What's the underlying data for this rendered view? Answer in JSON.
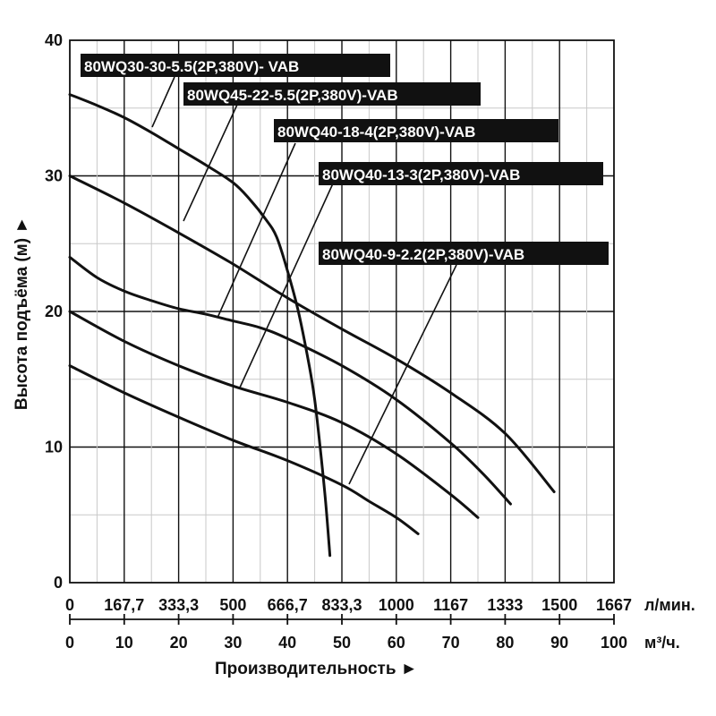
{
  "chart_data": {
    "type": "line",
    "xlabel": "Производительность ►",
    "ylabel": "Высота подъёма (м) ►",
    "x_unit": "м³/ч.",
    "x2_unit": "л/мин.",
    "xlim": [
      0,
      100
    ],
    "ylim": [
      0,
      40
    ],
    "x_ticks": [
      "0",
      "10",
      "20",
      "30",
      "40",
      "50",
      "60",
      "70",
      "80",
      "90",
      "100"
    ],
    "x2_ticks": [
      "0",
      "167,7",
      "333,3",
      "500",
      "666,7",
      "833,3",
      "1000",
      "1167",
      "1333",
      "1500",
      "1667"
    ],
    "y_ticks": [
      "0",
      "10",
      "20",
      "30",
      "40"
    ],
    "grid": true,
    "series": [
      {
        "name": "80WQ30-30-5.5(2P,380V)- VAB",
        "x": [
          0,
          5,
          10,
          15,
          20,
          25,
          30,
          33,
          36,
          38,
          40,
          42,
          44,
          45,
          46,
          47,
          47.8
        ],
        "y": [
          36,
          35.2,
          34.3,
          33.2,
          32,
          30.8,
          29.5,
          28.3,
          26.8,
          25.5,
          23,
          20,
          16,
          13.5,
          10,
          6,
          2
        ]
      },
      {
        "name": "80WQ45-22-5.5(2P,380V)-VAB",
        "x": [
          0,
          10,
          20,
          30,
          40,
          50,
          60,
          70,
          80,
          89
        ],
        "y": [
          30,
          28,
          25.8,
          23.5,
          21,
          18.7,
          16.5,
          14,
          11,
          6.7
        ]
      },
      {
        "name": "80WQ40-18-4(2P,380V)-VAB",
        "x": [
          0,
          5,
          10,
          15,
          20,
          25,
          30,
          35,
          40,
          50,
          60,
          70,
          76,
          81
        ],
        "y": [
          24,
          22.5,
          21.5,
          20.8,
          20.2,
          19.8,
          19.3,
          18.8,
          18,
          16,
          13.5,
          10.3,
          8,
          5.8
        ]
      },
      {
        "name": "80WQ40-13-3(2P,380V)-VAB",
        "x": [
          0,
          10,
          20,
          30,
          40,
          50,
          60,
          70,
          75
        ],
        "y": [
          20,
          17.8,
          16,
          14.5,
          13.3,
          11.8,
          9.5,
          6.5,
          4.8
        ]
      },
      {
        "name": "80WQ40-9-2.2(2P,380V)-VAB",
        "x": [
          0,
          10,
          20,
          30,
          40,
          50,
          55,
          60,
          64
        ],
        "y": [
          16,
          14,
          12.2,
          10.5,
          9,
          7.2,
          6,
          4.8,
          3.6
        ]
      }
    ]
  }
}
